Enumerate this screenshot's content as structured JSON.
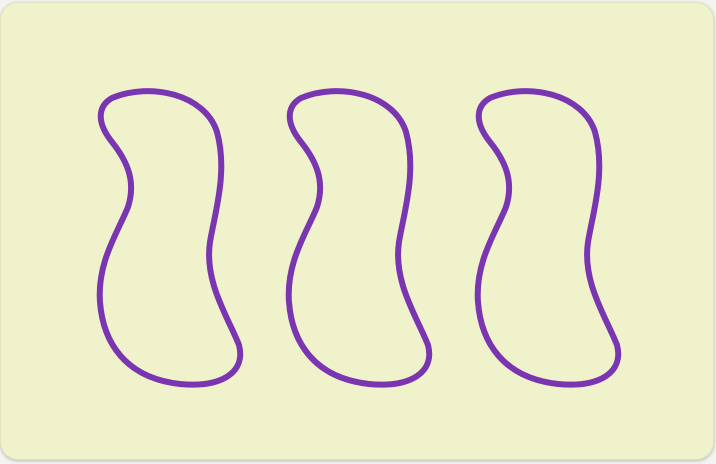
{
  "card": {
    "shape": "squiggle",
    "count": 3,
    "color": "#7a36b1",
    "shading": "open",
    "background": "#f0f2cc"
  }
}
